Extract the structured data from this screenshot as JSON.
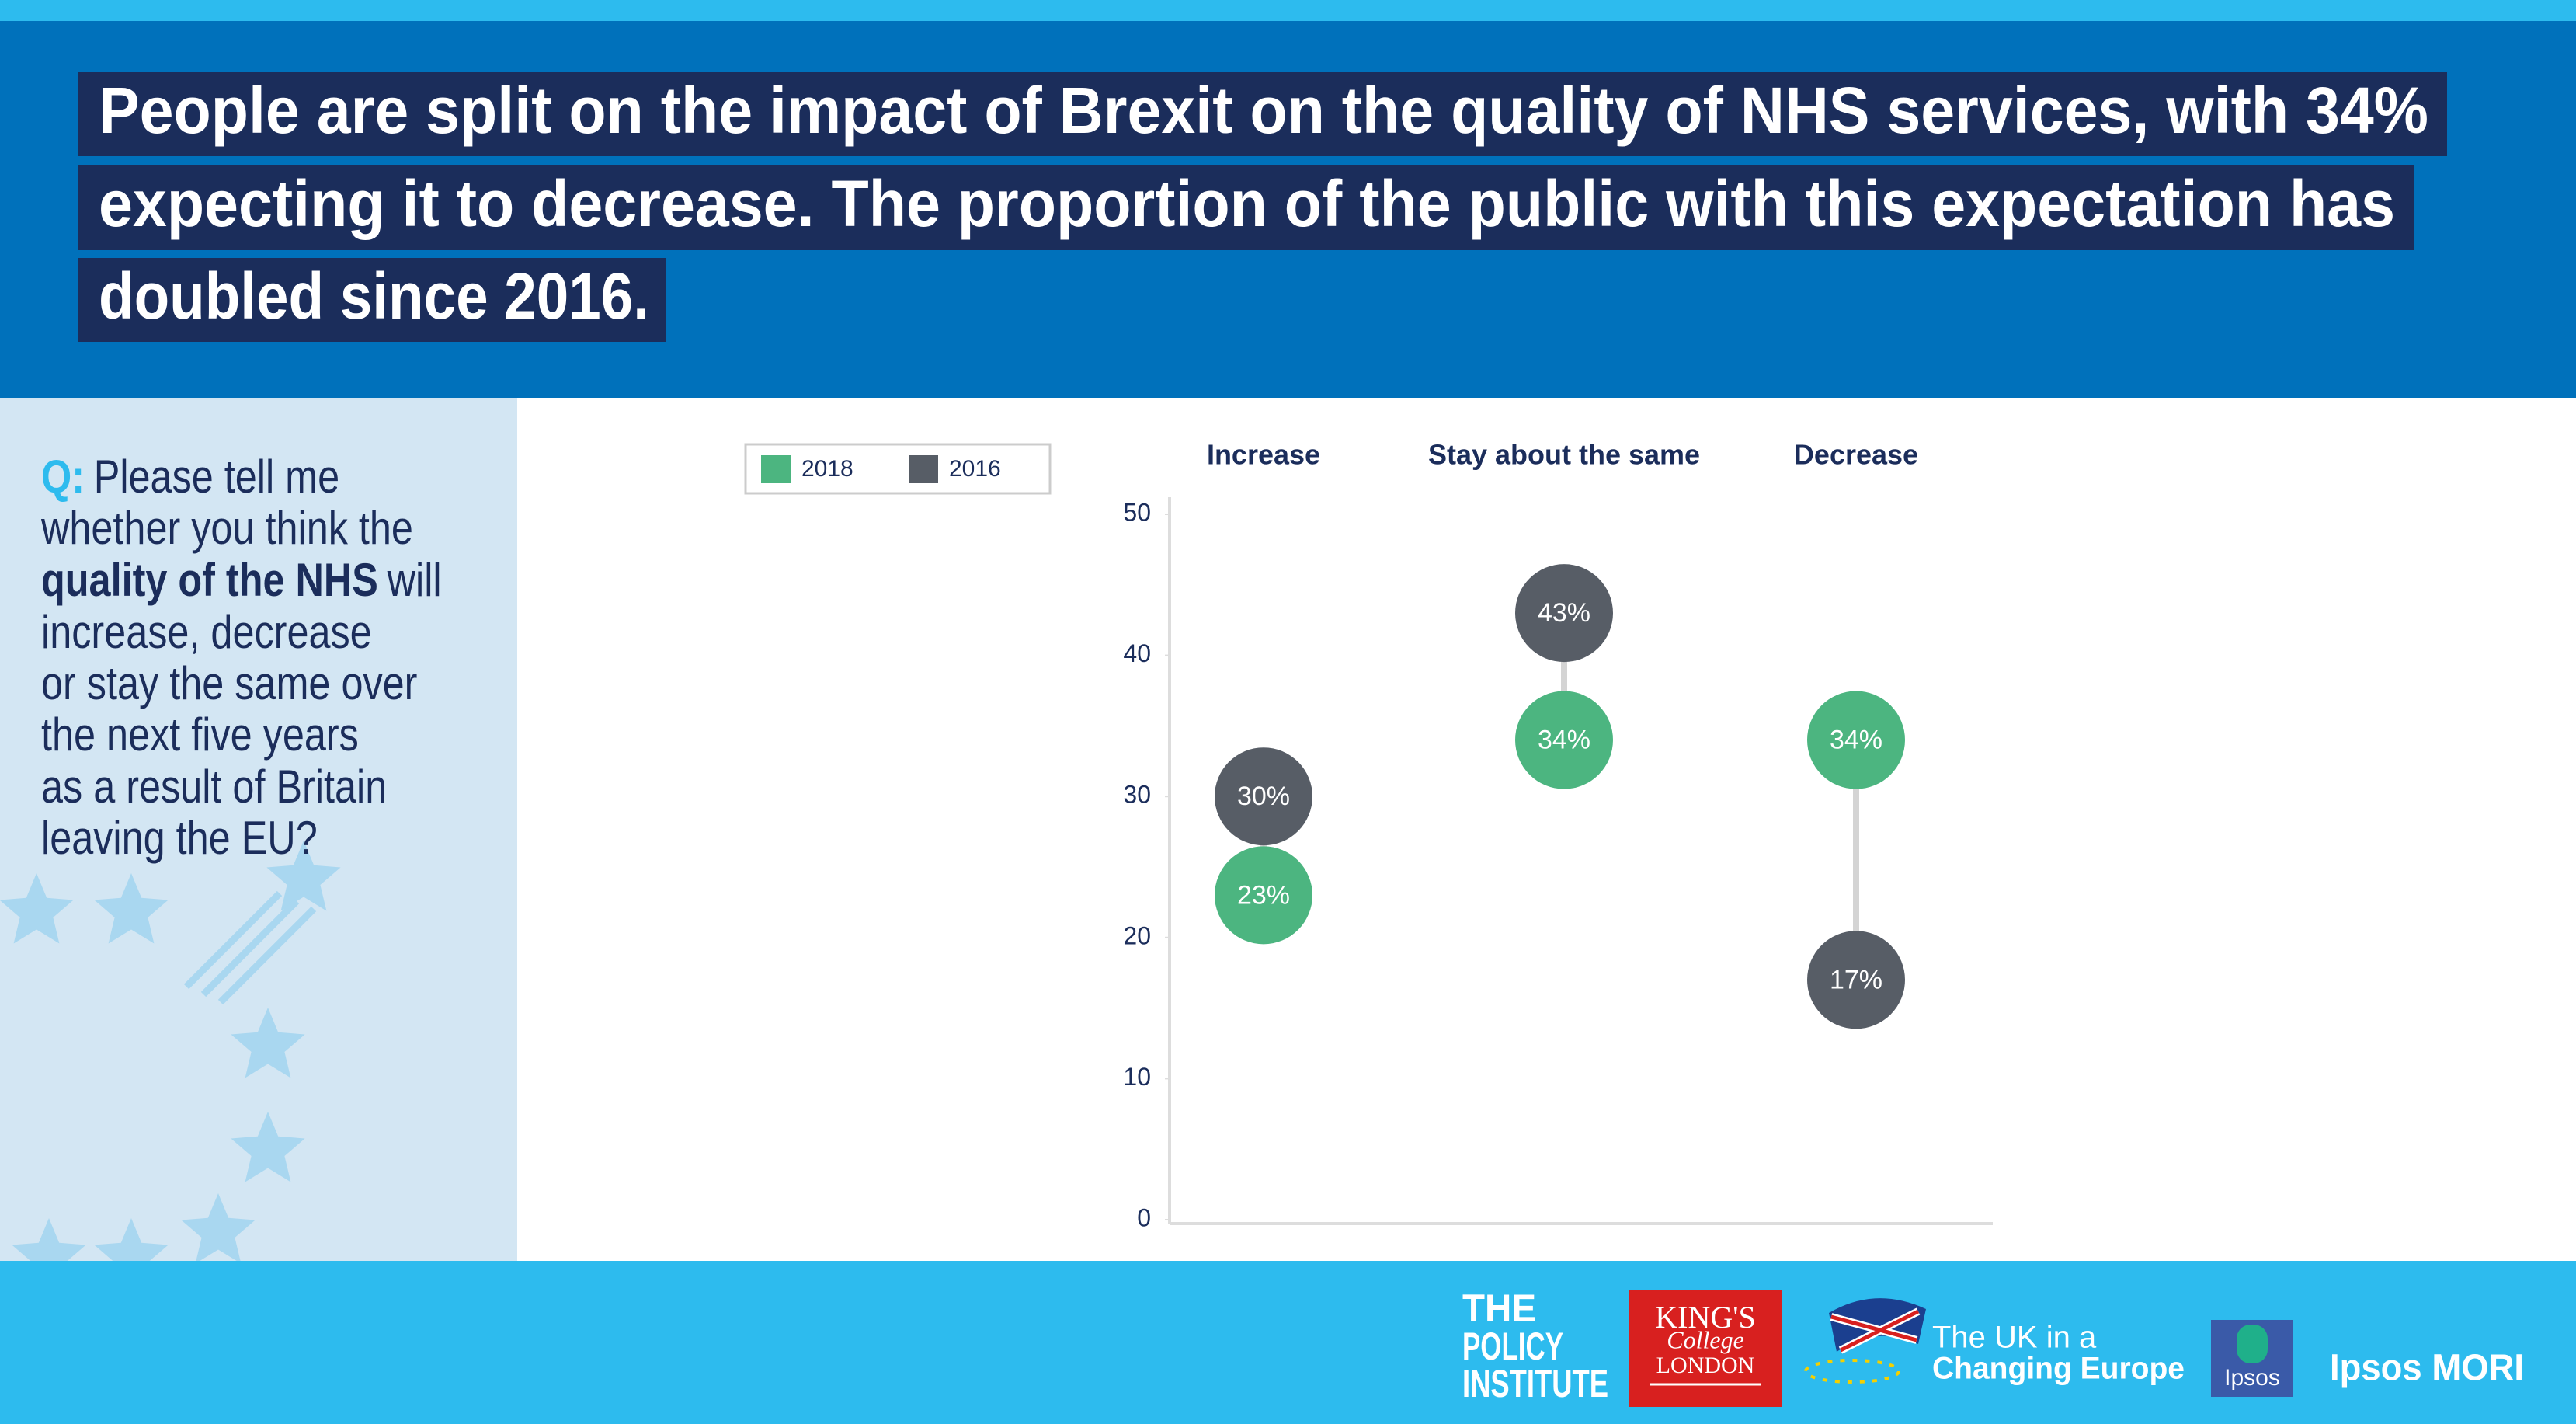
{
  "header": {
    "title_lines": [
      "People are split on the impact of Brexit on the quality of NHS services, with 34%",
      "expecting it to decrease. The proportion of the public with this expectation has",
      "doubled since 2016."
    ]
  },
  "question": {
    "lines": [
      [
        "Q:",
        "Please tell me"
      ],
      [
        "whether you think the"
      ],
      [
        "quality of the NHS",
        "will"
      ],
      [
        "increase, decrease"
      ],
      [
        "or stay the same over"
      ],
      [
        "the next five years"
      ],
      [
        "as a result of Britain"
      ],
      [
        "leaving the EU?"
      ]
    ]
  },
  "chart_data": {
    "type": "dumbbell",
    "categories": [
      "Increase",
      "Stay about the same",
      "Decrease"
    ],
    "series": [
      {
        "name": "2018",
        "color": "#4cb580",
        "values": [
          23,
          34,
          34
        ],
        "value_labels": [
          "23%",
          "34%",
          "34%"
        ]
      },
      {
        "name": "2016",
        "color": "#575d66",
        "values": [
          30,
          43,
          17
        ],
        "value_labels": [
          "30%",
          "43%",
          "17%"
        ]
      }
    ],
    "ylim": [
      0,
      50
    ],
    "yticks": [
      0,
      10,
      20,
      30,
      40,
      50
    ],
    "connector_color": "#d4d4d4"
  },
  "footer": {
    "logos": {
      "policy": [
        "THE",
        "POLICY",
        "INSTITUTE"
      ],
      "kings": [
        "KING'S",
        "College",
        "LONDON"
      ],
      "ukice": [
        "The UK in a",
        "Changing Europe"
      ],
      "ipsos": "Ipsos",
      "ipsos_mori": "Ipsos MORI"
    }
  }
}
